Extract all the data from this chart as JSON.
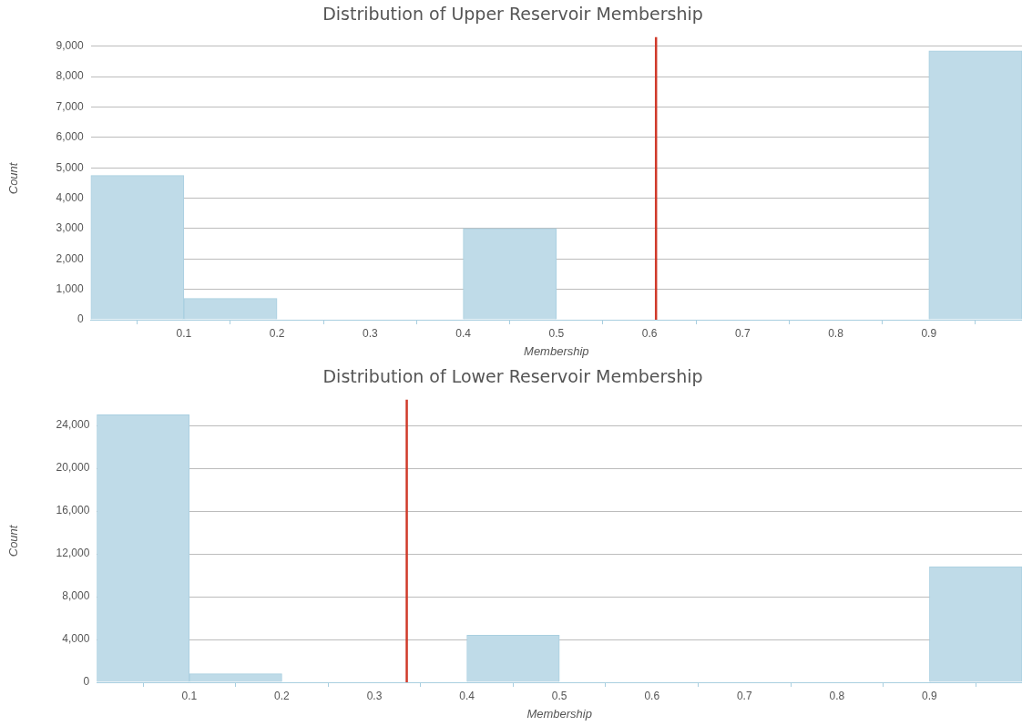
{
  "chart_data": [
    {
      "type": "histogram",
      "title": "Distribution of Upper Reservoir Membership",
      "xlabel": "Membership",
      "ylabel": "Count",
      "bins": [
        0,
        0.1,
        0.2,
        0.3,
        0.4,
        0.5,
        0.6,
        0.7,
        0.8,
        0.9,
        1.0
      ],
      "values": [
        4750,
        700,
        0,
        0,
        3000,
        0,
        0,
        0,
        0,
        8850
      ],
      "color": "#bfdbe8",
      "xlim": [
        0,
        1
      ],
      "xticks": [
        0.1,
        0.2,
        0.3,
        0.4,
        0.5,
        0.6,
        0.7,
        0.8,
        0.9
      ],
      "ylim": [
        0,
        9300
      ],
      "yticks": [
        {
          "value": 0,
          "label": "0"
        },
        {
          "value": 1000,
          "label": "1,000"
        },
        {
          "value": 2000,
          "label": "2,000"
        },
        {
          "value": 3000,
          "label": "3,000"
        },
        {
          "value": 4000,
          "label": "4,000"
        },
        {
          "value": 5000,
          "label": "5,000"
        },
        {
          "value": 6000,
          "label": "6,000"
        },
        {
          "value": 7000,
          "label": "7,000"
        },
        {
          "value": 8000,
          "label": "8,000"
        },
        {
          "value": 9000,
          "label": "9,000"
        }
      ],
      "ref_lines": [
        {
          "axis": "x",
          "value": 0.607,
          "color": "#d03a2a"
        }
      ],
      "grid": "y",
      "legend": false
    },
    {
      "type": "histogram",
      "title": "Distribution of Lower Reservoir Membership",
      "xlabel": "Membership",
      "ylabel": "Count",
      "bins": [
        0,
        0.1,
        0.2,
        0.3,
        0.4,
        0.5,
        0.6,
        0.7,
        0.8,
        0.9,
        1.0
      ],
      "values": [
        25000,
        800,
        0,
        0,
        4400,
        0,
        0,
        0,
        0,
        10800
      ],
      "color": "#bfdbe8",
      "xlim": [
        0,
        1
      ],
      "xticks": [
        0.1,
        0.2,
        0.3,
        0.4,
        0.5,
        0.6,
        0.7,
        0.8,
        0.9
      ],
      "ylim": [
        0,
        26400
      ],
      "yticks": [
        {
          "value": 0,
          "label": "0"
        },
        {
          "value": 4000,
          "label": "4,000"
        },
        {
          "value": 8000,
          "label": "8,000"
        },
        {
          "value": 12000,
          "label": "12,000"
        },
        {
          "value": 16000,
          "label": "16,000"
        },
        {
          "value": 20000,
          "label": "20,000"
        },
        {
          "value": 24000,
          "label": "24,000"
        }
      ],
      "ref_lines": [
        {
          "axis": "x",
          "value": 0.335,
          "color": "#d03a2a"
        }
      ],
      "grid": "y",
      "legend": false
    }
  ]
}
